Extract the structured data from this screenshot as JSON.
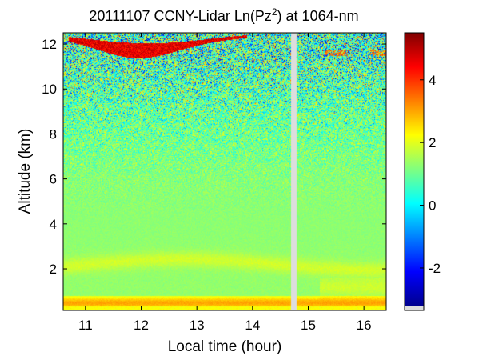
{
  "chart_data": {
    "type": "heatmap",
    "title_prefix": "20111107 CCNY-Lidar Ln(Pz",
    "title_sup": "2",
    "title_suffix": ") at 1064-nm",
    "xlabel": "Local time (hour)",
    "ylabel": "Altitude (km)",
    "xlim": [
      10.6,
      16.4
    ],
    "ylim": [
      0.15,
      12.5
    ],
    "xticks": [
      11,
      12,
      13,
      14,
      15,
      16
    ],
    "yticks": [
      2,
      4,
      6,
      8,
      10,
      12
    ],
    "colorbar": {
      "range": [
        -3.2,
        5.5
      ],
      "ticks": [
        -2,
        0,
        2,
        4
      ]
    },
    "data_gap": {
      "x_start": 14.68,
      "x_end": 14.78
    },
    "layers": [
      {
        "name": "boundary layer top",
        "altitude_km": 0.5,
        "value": 3.0
      },
      {
        "name": "residual aerosol layer",
        "altitude_km": 2.2,
        "value": 1.8
      },
      {
        "name": "cirrus cloud",
        "x_start": 10.7,
        "x_end": 13.9,
        "altitude_km": 11.9,
        "value": 5.2
      },
      {
        "name": "cirrus cloud east",
        "x_start": 15.3,
        "x_end": 16.4,
        "altitude_km": 11.6,
        "value": 4.0
      }
    ]
  },
  "colors": {
    "low": "#00008f",
    "mid": "#40e0b0",
    "high": "#800000",
    "gap": "#dddddd"
  }
}
